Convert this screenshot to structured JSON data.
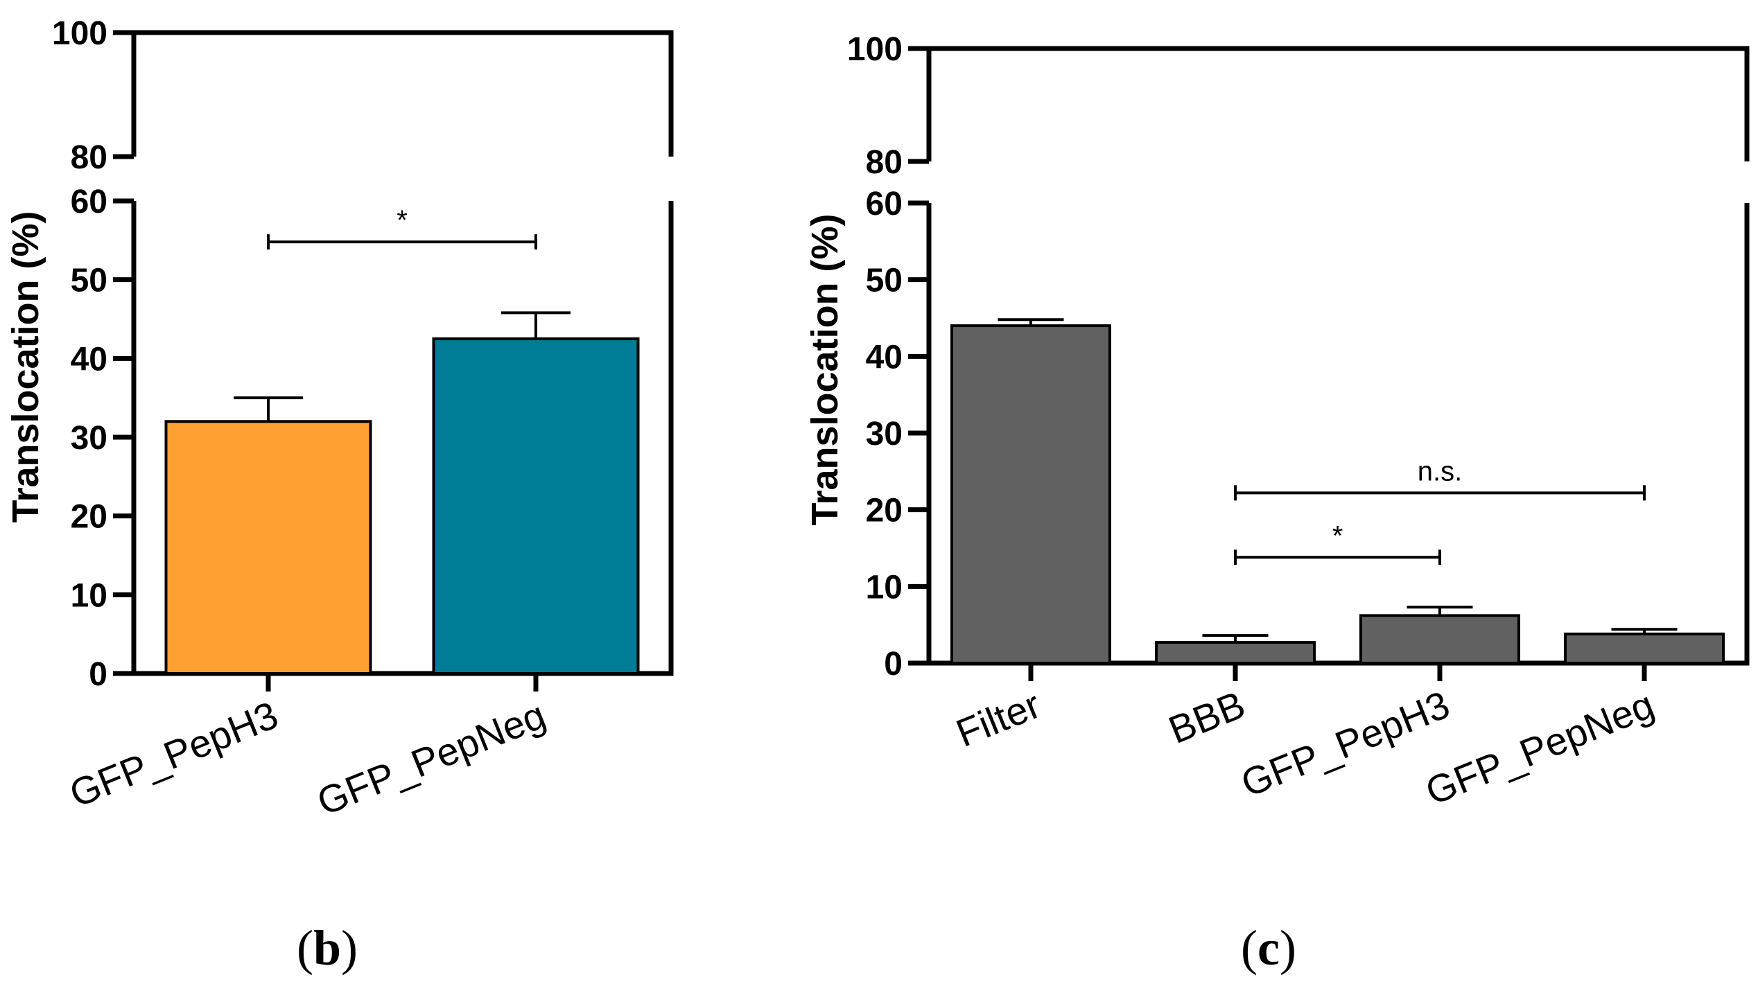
{
  "chart_data": [
    {
      "panel": "b",
      "type": "bar",
      "ylabel": "Translocation (%)",
      "categories": [
        "GFP_PepH3",
        "GFP_PepNeg"
      ],
      "values": [
        32,
        42.5
      ],
      "errors": [
        3,
        3.3
      ],
      "colors": [
        "#FFA033",
        "#007C96"
      ],
      "y_break": [
        60,
        80
      ],
      "ylim": [
        0,
        100
      ],
      "yticks": [
        0,
        10,
        20,
        30,
        40,
        50,
        60,
        80,
        100
      ],
      "significance": [
        {
          "from": 0,
          "to": 1,
          "label": "*",
          "y": 54.8
        }
      ]
    },
    {
      "panel": "c",
      "type": "bar",
      "ylabel": "Translocation (%)",
      "categories": [
        "Filter",
        "BBB",
        "GFP_PepH3",
        "GFP_PepNeg"
      ],
      "values": [
        44,
        2.7,
        6.2,
        3.8
      ],
      "errors": [
        0.8,
        0.9,
        1.1,
        0.6
      ],
      "colors": [
        "#616161",
        "#616161",
        "#616161",
        "#616161"
      ],
      "y_break": [
        60,
        80
      ],
      "ylim": [
        0,
        100
      ],
      "yticks": [
        0,
        10,
        20,
        30,
        40,
        50,
        60,
        80,
        100
      ],
      "significance": [
        {
          "from": 1,
          "to": 3,
          "label": "n.s.",
          "y": 22.2
        },
        {
          "from": 1,
          "to": 2,
          "label": "*",
          "y": 13.8
        }
      ]
    }
  ],
  "panel_labels": {
    "b": {
      "open": "(",
      "letter": "b",
      "close": ")"
    },
    "c": {
      "open": "(",
      "letter": "c",
      "close": ")"
    }
  }
}
